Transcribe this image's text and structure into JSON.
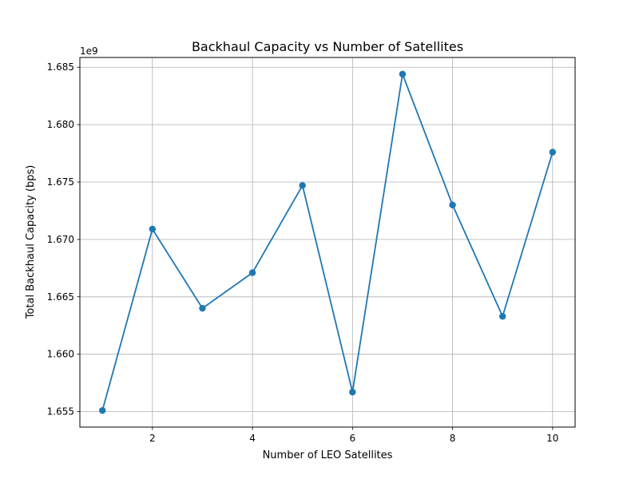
{
  "chart_data": {
    "type": "line",
    "title": "Backhaul Capacity vs Number of Satellites",
    "xlabel": "Number of LEO Satellites",
    "ylabel": "Total Backhaul Capacity (bps)",
    "y_offset_label": "1e9",
    "x": [
      1,
      2,
      3,
      4,
      5,
      6,
      7,
      8,
      9,
      10
    ],
    "series": [
      {
        "values": [
          1655100000.0,
          1670900000.0,
          1664000000.0,
          1667100000.0,
          1674700000.0,
          1656700000.0,
          1684400000.0,
          1673000000.0,
          1663300000.0,
          1677600000.0
        ],
        "color": "#1f77b4",
        "marker": "circle"
      }
    ],
    "xlim": [
      0.55,
      10.45
    ],
    "ylim": [
      1653650000.0,
      1685850000.0
    ],
    "xticks": [
      2,
      4,
      6,
      8,
      10
    ],
    "xtick_labels": [
      "2",
      "4",
      "6",
      "8",
      "10"
    ],
    "yticks": [
      1655000000.0,
      1660000000.0,
      1665000000.0,
      1670000000.0,
      1675000000.0,
      1680000000.0,
      1685000000.0
    ],
    "ytick_labels": [
      "1.655",
      "1.660",
      "1.665",
      "1.670",
      "1.675",
      "1.680",
      "1.685"
    ],
    "grid": true,
    "legend": false
  }
}
